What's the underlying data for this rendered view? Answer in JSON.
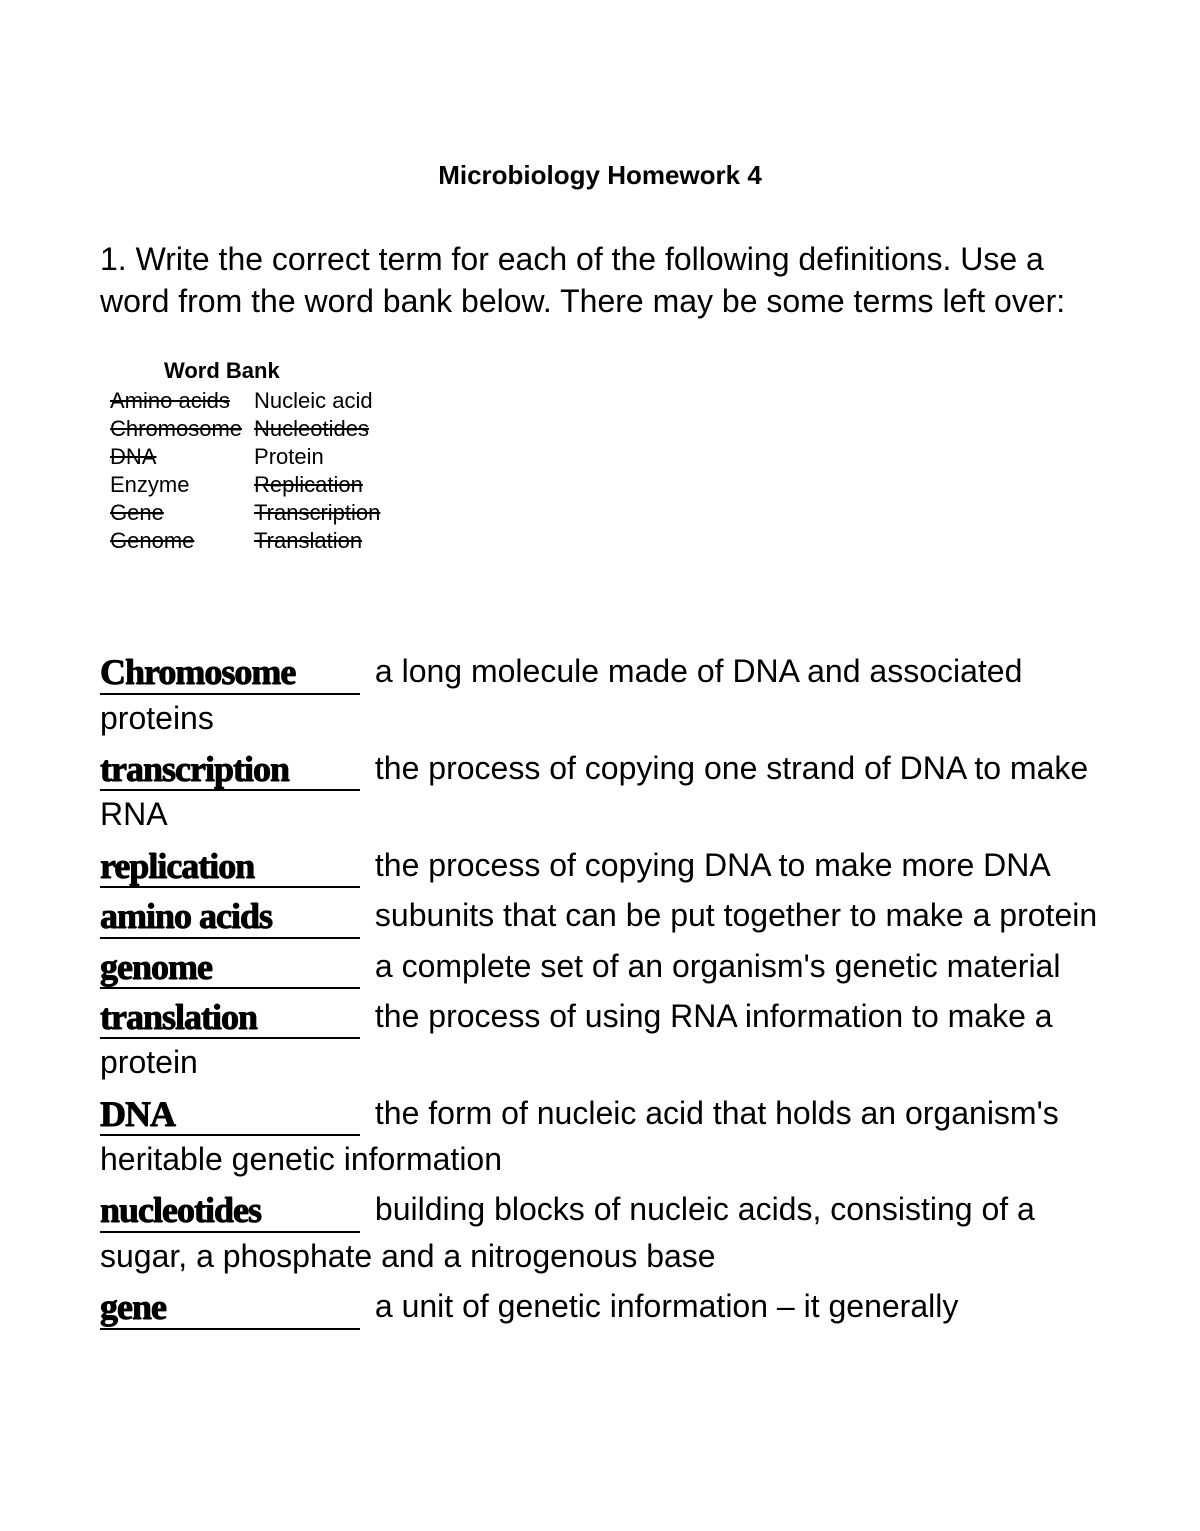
{
  "title": "Microbiology Homework 4",
  "instructions": "1. Write the correct term for each of the following definitions.  Use a word from the word bank below. There may be some terms left over:",
  "wordbank": {
    "heading": "Word Bank",
    "rows": [
      {
        "left": "Amino acids",
        "left_struck": true,
        "right": "Nucleic acid",
        "right_struck": false
      },
      {
        "left": "Chromosome",
        "left_struck": true,
        "right": "Nucleotides",
        "right_struck": true
      },
      {
        "left": "DNA",
        "left_struck": true,
        "right": "Protein",
        "right_struck": false
      },
      {
        "left": "Enzyme",
        "left_struck": false,
        "right": "Replication",
        "right_struck": true
      },
      {
        "left": "Gene",
        "left_struck": true,
        "right": "Transcription",
        "right_struck": true
      },
      {
        "left": "Genome",
        "left_struck": true,
        "right": "Translation",
        "right_struck": true
      }
    ]
  },
  "definitions": [
    {
      "answer": "Chromosome",
      "text": "a long molecule made of DNA and associated proteins"
    },
    {
      "answer": "transcription",
      "text": "the process of copying one strand of DNA to make RNA"
    },
    {
      "answer": "replication",
      "text": "the process of copying DNA to make more DNA"
    },
    {
      "answer": "amino acids",
      "text": "subunits that can be put together to make a protein"
    },
    {
      "answer": "genome",
      "text": "a complete set of an organism's genetic material"
    },
    {
      "answer": "translation",
      "text": "the process of using RNA information to make a protein"
    },
    {
      "answer": "DNA",
      "text": "the form of nucleic acid that holds an organism's heritable genetic information"
    },
    {
      "answer": "nucleotides",
      "text": "building blocks of nucleic acids, consisting of a sugar, a phosphate and a nitrogenous base"
    },
    {
      "answer": "gene",
      "text": "a unit of genetic information – it generally"
    }
  ],
  "colors": {
    "background": "#ffffff",
    "text": "#000000"
  }
}
